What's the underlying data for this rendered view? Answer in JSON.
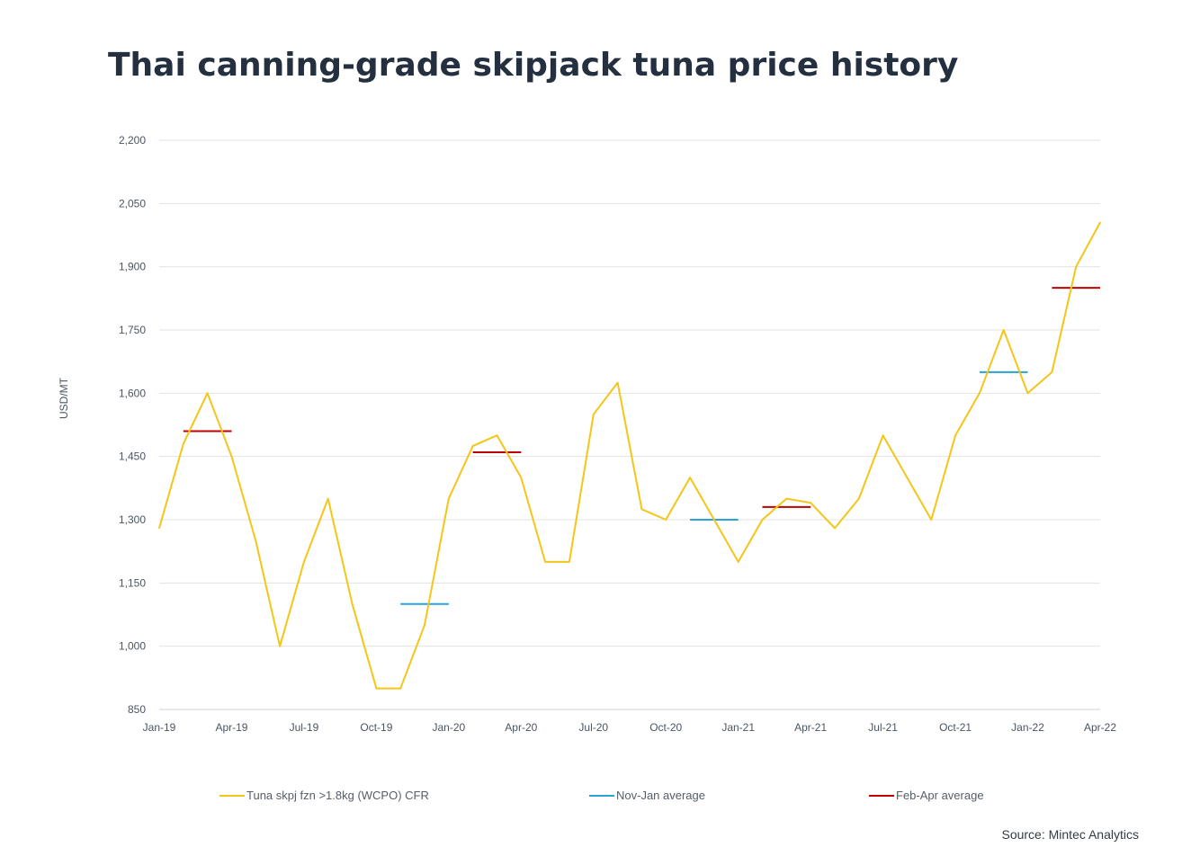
{
  "chart_data": {
    "type": "line",
    "title": "Thai canning-grade skipjack tuna price history",
    "ylabel": "USD/MT",
    "xlabel": "",
    "ylim": [
      850,
      2200
    ],
    "yticks": [
      850,
      1000,
      1150,
      1300,
      1450,
      1600,
      1750,
      1900,
      2050,
      2200
    ],
    "ytick_labels": [
      "850",
      "1,000",
      "1,150",
      "1,300",
      "1,450",
      "1,600",
      "1,750",
      "1,900",
      "2,050",
      "2,200"
    ],
    "xtick_labels": [
      "Jan-19",
      "Apr-19",
      "Jul-19",
      "Oct-19",
      "Jan-20",
      "Apr-20",
      "Jul-20",
      "Oct-20",
      "Jan-21",
      "Apr-21",
      "Jul-21",
      "Oct-21",
      "Jan-22",
      "Apr-22"
    ],
    "x": [
      "Jan-19",
      "Feb-19",
      "Mar-19",
      "Apr-19",
      "May-19",
      "Jun-19",
      "Jul-19",
      "Aug-19",
      "Sep-19",
      "Oct-19",
      "Nov-19",
      "Dec-19",
      "Jan-20",
      "Feb-20",
      "Mar-20",
      "Apr-20",
      "May-20",
      "Jun-20",
      "Jul-20",
      "Aug-20",
      "Sep-20",
      "Oct-20",
      "Nov-20",
      "Dec-20",
      "Jan-21",
      "Feb-21",
      "Mar-21",
      "Apr-21",
      "May-21",
      "Jun-21",
      "Jul-21",
      "Aug-21",
      "Sep-21",
      "Oct-21",
      "Nov-21",
      "Dec-21",
      "Jan-22",
      "Feb-22",
      "Mar-22",
      "Apr-22"
    ],
    "grid": true,
    "legend_position": "bottom",
    "series": [
      {
        "name": "Tuna skpj fzn >1.8kg (WCPO) CFR",
        "color": "#f5c518",
        "values": [
          1280,
          1480,
          1600,
          1450,
          1250,
          1000,
          1200,
          1350,
          1100,
          900,
          900,
          1050,
          1350,
          1475,
          1500,
          1400,
          1200,
          1200,
          1550,
          1625,
          1325,
          1300,
          1400,
          1300,
          1200,
          1300,
          1350,
          1340,
          1280,
          1350,
          1500,
          1400,
          1300,
          1500,
          1600,
          1750,
          1600,
          1650,
          1900,
          2005
        ]
      }
    ],
    "averages": [
      {
        "name": "Nov-Jan average",
        "color": "#29a3d6",
        "segments": [
          {
            "from": "Nov-19",
            "to": "Jan-20",
            "value": 1100
          },
          {
            "from": "Nov-20",
            "to": "Jan-21",
            "value": 1300
          },
          {
            "from": "Nov-21",
            "to": "Jan-22",
            "value": 1650
          }
        ]
      },
      {
        "name": "Feb-Apr average",
        "color": "#c00000",
        "segments": [
          {
            "from": "Feb-19",
            "to": "Apr-19",
            "value": 1510
          },
          {
            "from": "Feb-20",
            "to": "Apr-20",
            "value": 1460
          },
          {
            "from": "Feb-21",
            "to": "Apr-21",
            "value": 1330
          },
          {
            "from": "Feb-22",
            "to": "Apr-22",
            "value": 1850
          }
        ]
      }
    ]
  },
  "legend": {
    "series1": "Tuna skpj fzn >1.8kg (WCPO) CFR",
    "series2": "Nov-Jan average",
    "series3": "Feb-Apr average"
  },
  "source": "Source: Mintec Analytics",
  "colors": {
    "title": "#24303f",
    "grid": "#e3e3e3",
    "axis_text": "#4a5563"
  }
}
